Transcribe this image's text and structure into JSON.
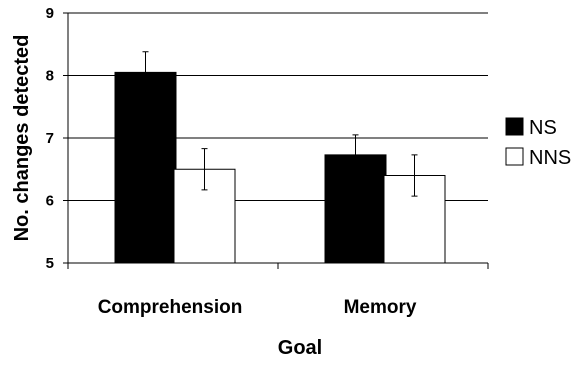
{
  "chart_data": {
    "type": "bar",
    "xlabel": "Goal",
    "ylabel": "No. changes detected",
    "ylim": [
      5,
      9
    ],
    "yticks": [
      "5",
      "6",
      "7",
      "8",
      "9"
    ],
    "grid": true,
    "legend_position": "right",
    "categories": [
      "Comprehension",
      "Memory"
    ],
    "series": [
      {
        "name": "NS",
        "color": "#000000",
        "values": [
          8.05,
          6.73
        ],
        "errors": [
          0.33,
          0.32
        ]
      },
      {
        "name": "NNS",
        "color": "#ffffff",
        "values": [
          6.5,
          6.4
        ],
        "errors": [
          0.33,
          0.33
        ]
      }
    ]
  }
}
